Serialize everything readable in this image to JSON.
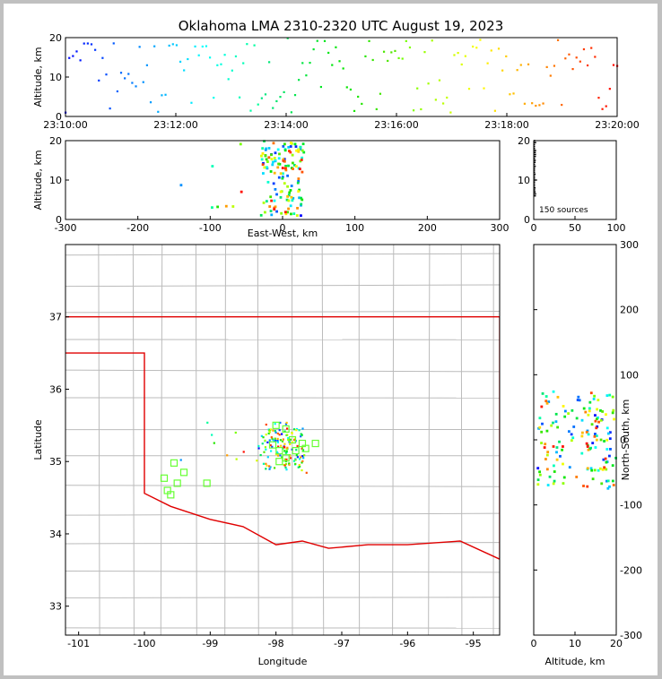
{
  "title": "Oklahoma LMA 2310-2320 UTC August 19, 2023",
  "source_count_label": "150 sources",
  "colors": {
    "background": "#c0c0c0",
    "state_border": "#e00000",
    "county_lines": "#bbbbbb",
    "stations": "#66ff33"
  },
  "chart_data": [
    {
      "id": "time_height",
      "type": "scatter",
      "ylabel": "Altitude, km",
      "xlim_minutes": [
        0,
        10
      ],
      "xticks": [
        "23:10:00",
        "23:12:00",
        "23:14:00",
        "23:16:00",
        "23:18:00",
        "23:20:00"
      ],
      "ylim": [
        0,
        20
      ],
      "yticks": [
        "0",
        "10",
        "20"
      ]
    },
    {
      "id": "ew_height",
      "type": "scatter",
      "xlabel": "East-West, km",
      "ylabel": "Altitude, km",
      "xlim": [
        -300,
        300
      ],
      "xticks": [
        "-300",
        "-200",
        "-100",
        "0",
        "100",
        "200",
        "300"
      ],
      "ylim": [
        0,
        20
      ],
      "yticks": [
        "0",
        "10",
        "20"
      ]
    },
    {
      "id": "alt_histogram",
      "type": "scatter",
      "xlim": [
        0,
        100
      ],
      "xticks": [
        "0",
        "50",
        "100"
      ],
      "ylim": [
        0,
        20
      ],
      "yticks": [
        "0",
        "10",
        "20"
      ]
    },
    {
      "id": "plan_view",
      "type": "scatter",
      "xlabel": "Longitude",
      "ylabel": "Latitude",
      "xlim": [
        -101.2,
        -94.6
      ],
      "xticks": [
        "-101",
        "-100",
        "-99",
        "-98",
        "-97",
        "-96",
        "-95"
      ],
      "ylim": [
        32.6,
        38.0
      ],
      "yticks": [
        "33",
        "34",
        "35",
        "36",
        "37"
      ],
      "stations": [
        {
          "lon": -99.5,
          "lat": 34.7
        },
        {
          "lon": -99.4,
          "lat": 34.85
        },
        {
          "lon": -99.55,
          "lat": 34.98
        },
        {
          "lon": -99.65,
          "lat": 34.6
        },
        {
          "lon": -99.7,
          "lat": 34.77
        },
        {
          "lon": -99.6,
          "lat": 34.54
        },
        {
          "lon": -99.05,
          "lat": 34.7
        },
        {
          "lon": -98.05,
          "lat": 35.23
        },
        {
          "lon": -97.95,
          "lat": 35.15
        },
        {
          "lon": -97.85,
          "lat": 35.45
        },
        {
          "lon": -97.75,
          "lat": 35.3
        },
        {
          "lon": -97.7,
          "lat": 35.15
        },
        {
          "lon": -97.6,
          "lat": 35.25
        },
        {
          "lon": -97.55,
          "lat": 35.18
        },
        {
          "lon": -97.4,
          "lat": 35.25
        },
        {
          "lon": -97.85,
          "lat": 35.05
        },
        {
          "lon": -98.0,
          "lat": 35.5
        },
        {
          "lon": -97.95,
          "lat": 35.0
        }
      ]
    },
    {
      "id": "ns_height",
      "type": "scatter",
      "xlabel": "Altitude, km",
      "ylabel": "North-South, km",
      "xlim": [
        0,
        20
      ],
      "xticks": [
        "0",
        "10",
        "20"
      ],
      "ylim": [
        -300,
        300
      ],
      "yticks": [
        "-300",
        "-200",
        "-100",
        "0",
        "100",
        "200",
        "300"
      ]
    }
  ]
}
